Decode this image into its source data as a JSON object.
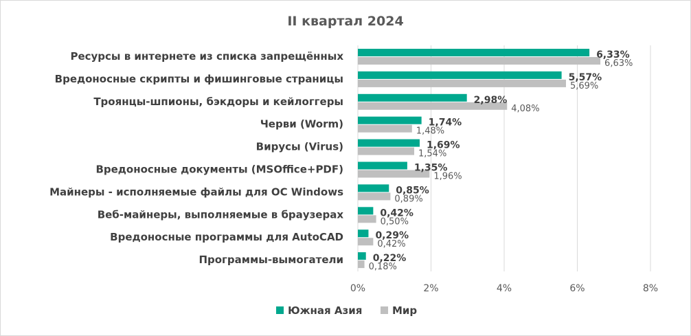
{
  "chart_data": {
    "type": "bar",
    "orientation": "horizontal",
    "title": "II квартал 2024",
    "categories": [
      "Ресурсы в интернете из списка запрещённых",
      "Вредоносные скрипты и фишинговые страницы",
      "Троянцы-шпионы, бэкдоры и кейлоггеры",
      "Черви (Worm)",
      "Вирусы (Virus)",
      "Вредоносные документы (MSOffice+PDF)",
      "Майнеры - исполняемые файлы для ОС Windows",
      "Веб-майнеры, выполняемые в браузерах",
      "Вредоносные программы для AutoCAD",
      "Программы-вымогатели"
    ],
    "series": [
      {
        "name": "Южная Азия",
        "color": "#00a88e",
        "values": [
          6.33,
          5.57,
          2.98,
          1.74,
          1.69,
          1.35,
          0.85,
          0.42,
          0.29,
          0.22
        ],
        "labels": [
          "6,33%",
          "5,57%",
          "2,98%",
          "1,74%",
          "1,69%",
          "1,35%",
          "0,85%",
          "0,42%",
          "0,29%",
          "0,22%"
        ]
      },
      {
        "name": "Мир",
        "color": "#bfbfbf",
        "values": [
          6.63,
          5.69,
          4.08,
          1.48,
          1.54,
          1.96,
          0.89,
          0.5,
          0.42,
          0.18
        ],
        "labels": [
          "6,63%",
          "5,69%",
          "4,08%",
          "1,48%",
          "1,54%",
          "1,96%",
          "0,89%",
          "0,50%",
          "0,42%",
          "0,18%"
        ]
      }
    ],
    "xlim": [
      0,
      8
    ],
    "ticks": [
      "0%",
      "2%",
      "4%",
      "6%",
      "8%"
    ],
    "grid": true,
    "legend_position": "bottom"
  }
}
